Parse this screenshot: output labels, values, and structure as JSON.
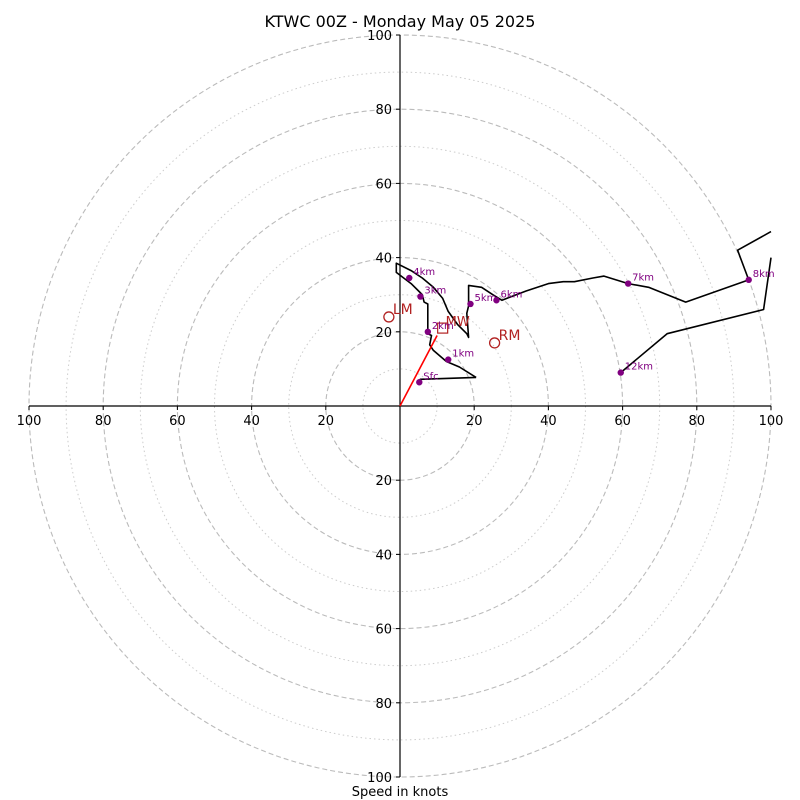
{
  "chart_data": {
    "type": "hodograph",
    "title": "KTWC 00Z - Monday May 05 2025",
    "xlabel": "Speed in knots",
    "x_range": [
      -100,
      100
    ],
    "y_range": [
      -100,
      100
    ],
    "x_ticks": [
      -100,
      -80,
      -60,
      -40,
      -20,
      20,
      40,
      60,
      80,
      100
    ],
    "x_tick_labels": [
      "100",
      "80",
      "60",
      "40",
      "20",
      "20",
      "40",
      "60",
      "80",
      "100"
    ],
    "y_ticks": [
      100,
      80,
      60,
      40,
      20,
      -20,
      -40,
      -60,
      -80,
      -100
    ],
    "y_tick_labels": [
      "100",
      "80",
      "60",
      "40",
      "20",
      "20",
      "40",
      "60",
      "80",
      "100"
    ],
    "range_rings_dashed": [
      20,
      40,
      60,
      80,
      100
    ],
    "range_rings_dotted": [
      10,
      30,
      50,
      70,
      90
    ],
    "colors": {
      "trace": "#000000",
      "height_marker": "#800080",
      "mean_wind": "#ff0000",
      "storm_motion": "#b22222",
      "ring": "#bbbbbb",
      "axis": "#000000"
    },
    "hodograph_trace": [
      [
        20.5,
        7.7
      ],
      [
        16,
        10.5
      ],
      [
        12.5,
        12
      ],
      [
        9,
        15
      ],
      [
        8,
        16.5
      ],
      [
        8.5,
        19
      ],
      [
        7.5,
        19.5
      ],
      [
        7.5,
        27.5
      ],
      [
        6.5,
        28
      ],
      [
        6,
        30
      ],
      [
        5,
        31
      ],
      [
        3,
        33
      ],
      [
        -1,
        36
      ],
      [
        -1,
        38.5
      ],
      [
        3,
        36.5
      ],
      [
        6,
        34.5
      ],
      [
        9,
        32
      ],
      [
        11.5,
        29
      ],
      [
        13,
        25.5
      ],
      [
        15.5,
        22
      ],
      [
        18,
        19.5
      ],
      [
        18.5,
        18.5
      ],
      [
        18,
        25
      ],
      [
        18.5,
        27
      ],
      [
        18.5,
        32.5
      ],
      [
        22,
        32
      ],
      [
        25,
        30
      ],
      [
        27.5,
        28.5
      ],
      [
        30,
        29.5
      ],
      [
        34,
        31
      ],
      [
        40,
        33
      ],
      [
        44,
        33.5
      ],
      [
        47,
        33.5
      ],
      [
        52,
        34.5
      ],
      [
        55,
        35
      ],
      [
        61.5,
        33
      ],
      [
        67,
        32
      ],
      [
        77,
        28
      ],
      [
        94,
        34
      ],
      [
        91,
        42
      ],
      [
        100,
        47
      ]
    ],
    "trace_segment_2": [
      [
        59.5,
        9
      ],
      [
        72,
        19.5
      ],
      [
        98,
        26
      ],
      [
        100,
        40
      ]
    ],
    "trace_segment_3": [
      [
        5.2,
        6.4
      ],
      [
        5.2,
        6.4
      ]
    ],
    "height_markers": [
      {
        "label": "Sfc",
        "u": 5.2,
        "v": 6.4
      },
      {
        "label": "1km",
        "u": 13,
        "v": 12.5
      },
      {
        "label": "2km",
        "u": 7.5,
        "v": 20
      },
      {
        "label": "3km",
        "u": 5.5,
        "v": 29.5
      },
      {
        "label": "4km",
        "u": 2.5,
        "v": 34.5
      },
      {
        "label": "5km",
        "u": 19,
        "v": 27.5
      },
      {
        "label": "6km",
        "u": 26,
        "v": 28.5
      },
      {
        "label": "7km",
        "u": 61.5,
        "v": 33
      },
      {
        "label": "8km",
        "u": 94,
        "v": 34
      },
      {
        "label": "12km",
        "u": 59.5,
        "v": 9
      }
    ],
    "mean_wind": {
      "label": "MW",
      "u": 11.5,
      "v": 21
    },
    "mean_wind_vector": {
      "from": [
        0,
        0
      ],
      "to": [
        10,
        19
      ]
    },
    "storm_motion": [
      {
        "label": "LM",
        "u": -3,
        "v": 24
      },
      {
        "label": "RM",
        "u": 25.5,
        "v": 17
      }
    ]
  }
}
